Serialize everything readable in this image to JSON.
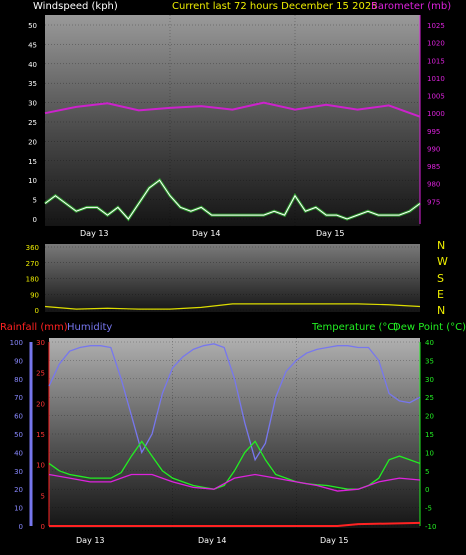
{
  "header": {
    "left": "Windspeed (kph)",
    "center": "Current last 72 hours December 15 2025",
    "right": "Barometer (mb)"
  },
  "day_labels": [
    "Day 13",
    "Day 14",
    "Day 15"
  ],
  "compass_labels": [
    "N",
    "W",
    "S",
    "E",
    "N"
  ],
  "lower_header": {
    "rainfall": "Rainfall (mm)",
    "humidity": "Humidity",
    "temperature": "Temperature (°C)",
    "dewpoint": "Dew Point (°C)"
  },
  "colors": {
    "windspeed": "#ffffff",
    "wind_gust": "#33cc33",
    "barometer": "#cc22cc",
    "direction": "#dddd00",
    "rainfall": "#ff2222",
    "humidity": "#7777ee",
    "temperature": "#22ee22",
    "dewpoint": "#dd22dd",
    "header_center": "#eeee00"
  },
  "chart_data": [
    {
      "type": "line",
      "hours": 72,
      "y_left": {
        "label": "Windspeed (kph)",
        "range": [
          0,
          50
        ],
        "ticks": [
          0,
          5,
          10,
          15,
          20,
          25,
          30,
          35,
          40,
          45,
          50
        ]
      },
      "y_right": {
        "label": "Barometer (mb)",
        "range": [
          970,
          1025
        ],
        "ticks": [
          975,
          980,
          985,
          990,
          995,
          1000,
          1005,
          1010,
          1015,
          1020,
          1025
        ]
      },
      "series": [
        {
          "name": "Barometer (mb)",
          "axis": "right",
          "x": [
            0,
            6,
            12,
            18,
            24,
            30,
            36,
            42,
            48,
            54,
            60,
            66,
            72
          ],
          "y": [
            1000,
            1001.8,
            1002.8,
            1000.8,
            1001.5,
            1002,
            1001,
            1003,
            1001,
            1002.4,
            1001,
            1002.2,
            999
          ]
        },
        {
          "name": "Windspeed (kph)",
          "axis": "left",
          "x": [
            0,
            2,
            4,
            6,
            8,
            10,
            12,
            14,
            16,
            18,
            20,
            22,
            24,
            26,
            28,
            30,
            32,
            34,
            36,
            38,
            40,
            42,
            44,
            46,
            48,
            50,
            52,
            54,
            56,
            58,
            60,
            62,
            64,
            66,
            68,
            70,
            72
          ],
          "y": [
            4,
            6,
            4,
            2,
            3,
            3,
            1,
            3,
            0,
            4,
            8,
            10,
            6,
            3,
            2,
            3,
            1,
            1,
            1,
            1,
            1,
            1,
            2,
            1,
            6,
            2,
            3,
            1,
            1,
            0,
            1,
            2,
            1,
            1,
            1,
            2,
            4
          ]
        }
      ]
    },
    {
      "type": "line",
      "y_left": {
        "range": [
          0,
          360
        ],
        "ticks": [
          0,
          90,
          180,
          270,
          360
        ]
      },
      "series": [
        {
          "name": "Wind direction",
          "x": [
            0,
            6,
            12,
            18,
            24,
            30,
            36,
            42,
            48,
            54,
            60,
            66,
            72
          ],
          "y": [
            20,
            5,
            10,
            5,
            5,
            15,
            35,
            35,
            35,
            35,
            35,
            30,
            20
          ]
        }
      ]
    },
    {
      "type": "line",
      "y_left_outer": {
        "label": "Humidity",
        "range": [
          0,
          100
        ],
        "ticks": [
          0,
          10,
          20,
          30,
          40,
          50,
          60,
          70,
          80,
          90,
          100
        ]
      },
      "y_left_inner": {
        "label": "Rainfall (mm)",
        "range": [
          0,
          30
        ],
        "ticks": [
          0,
          5,
          10,
          15,
          20,
          25,
          30
        ]
      },
      "y_right": {
        "label": "Temperature (°C)",
        "range": [
          -10,
          40
        ],
        "ticks": [
          -10,
          -5,
          0,
          5,
          10,
          15,
          20,
          25,
          30,
          35,
          40
        ]
      },
      "series": [
        {
          "name": "Humidity",
          "axis": "left_outer",
          "x": [
            0,
            2,
            4,
            6,
            8,
            10,
            12,
            14,
            16,
            18,
            20,
            22,
            24,
            26,
            28,
            30,
            32,
            34,
            36,
            38,
            40,
            42,
            44,
            46,
            48,
            50,
            52,
            54,
            56,
            58,
            60,
            62,
            64,
            66,
            68,
            70,
            72
          ],
          "y": [
            76,
            88,
            95,
            97,
            98,
            98,
            97,
            80,
            60,
            40,
            50,
            72,
            86,
            92,
            96,
            98,
            99,
            97,
            80,
            56,
            36,
            45,
            70,
            84,
            90,
            94,
            96,
            97,
            98,
            98,
            97,
            97,
            90,
            72,
            68,
            67,
            70
          ]
        },
        {
          "name": "Rainfall (mm)",
          "axis": "left_inner",
          "x": [
            0,
            56,
            60,
            72
          ],
          "y": [
            0,
            0,
            0.3,
            0.5
          ]
        },
        {
          "name": "Temperature (°C)",
          "axis": "right",
          "x": [
            0,
            2,
            4,
            6,
            8,
            10,
            12,
            14,
            16,
            18,
            20,
            22,
            24,
            26,
            28,
            30,
            32,
            34,
            36,
            38,
            40,
            42,
            44,
            46,
            48,
            50,
            52,
            54,
            56,
            58,
            60,
            62,
            64,
            66,
            68,
            70,
            72
          ],
          "y": [
            7,
            5,
            4,
            3.5,
            3,
            3,
            3,
            4.5,
            9,
            13,
            9,
            5,
            3,
            2,
            1,
            0.5,
            0,
            1,
            5,
            10,
            13,
            8,
            4,
            3,
            2,
            1.5,
            1.2,
            1,
            0.5,
            0,
            0,
            1,
            3,
            8,
            9,
            8,
            7
          ]
        },
        {
          "name": "Dew Point (°C)",
          "axis": "right",
          "x": [
            0,
            4,
            8,
            12,
            16,
            20,
            24,
            28,
            32,
            36,
            40,
            44,
            48,
            52,
            56,
            60,
            64,
            68,
            72
          ],
          "y": [
            4,
            3,
            2,
            2,
            4,
            4,
            2,
            0.5,
            0,
            3,
            4,
            3,
            2,
            1,
            -0.5,
            0,
            2,
            3,
            2.5
          ]
        }
      ]
    }
  ]
}
